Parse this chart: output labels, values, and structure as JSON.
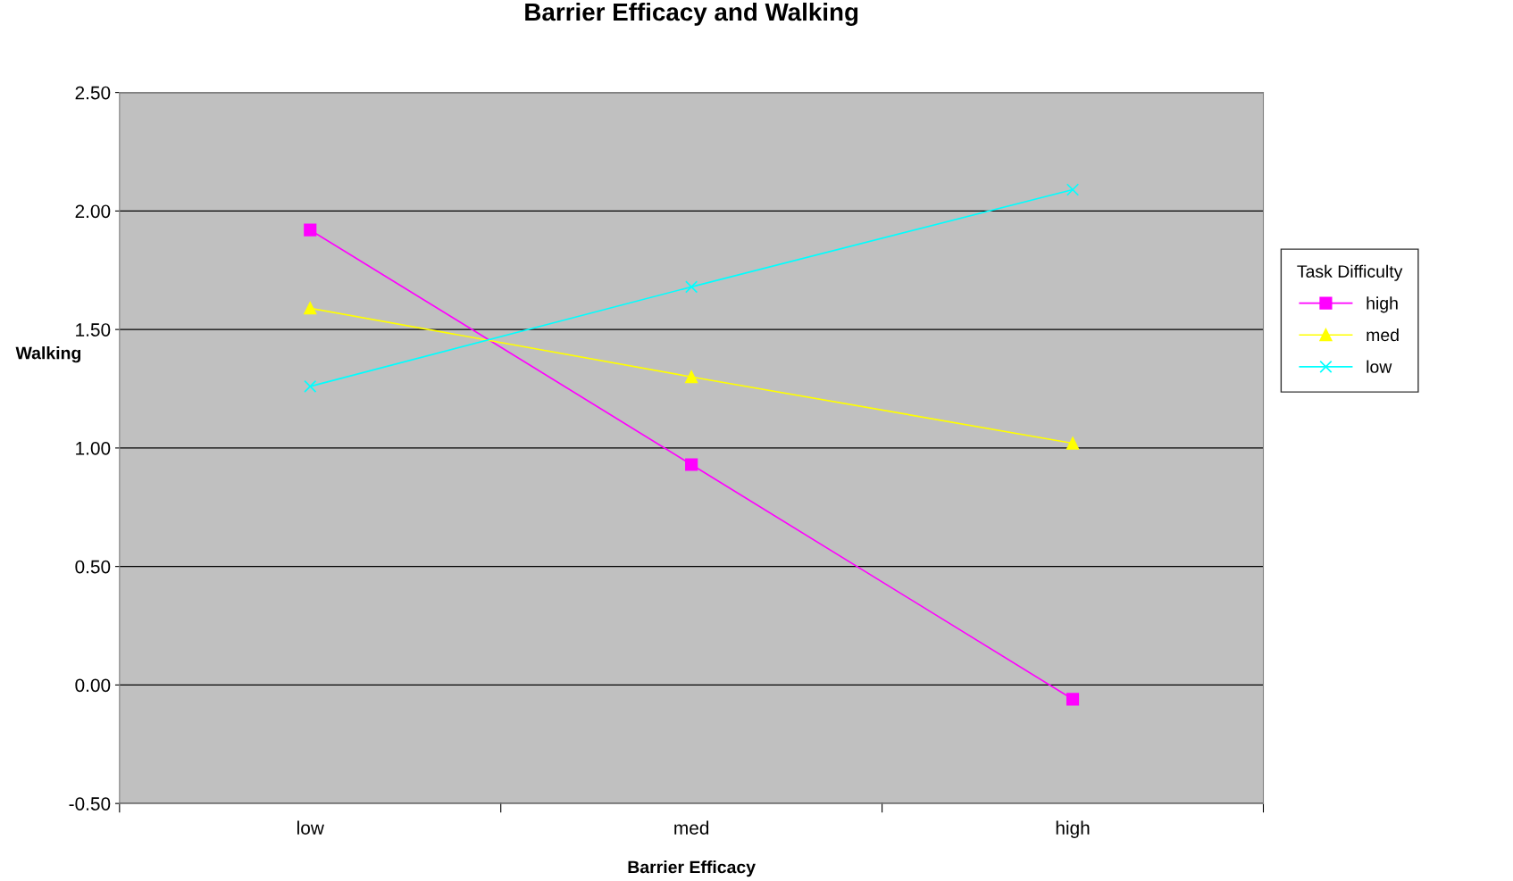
{
  "chart_data": {
    "type": "line",
    "title": "Barrier Efficacy and Walking",
    "xlabel": "Barrier Efficacy",
    "ylabel": "Walking",
    "legend_title": "Task Difficulty",
    "categories": [
      "low",
      "med",
      "high"
    ],
    "series": [
      {
        "name": "high",
        "color": "#ff00ff",
        "marker": "square",
        "values": [
          1.92,
          0.93,
          -0.06
        ]
      },
      {
        "name": "med",
        "color": "#ffff00",
        "marker": "triangle",
        "values": [
          1.59,
          1.3,
          1.02
        ]
      },
      {
        "name": "low",
        "color": "#00ffff",
        "marker": "cross",
        "values": [
          1.26,
          1.68,
          2.09
        ]
      }
    ],
    "ylim": [
      -0.5,
      2.5
    ],
    "yticks": [
      {
        "value": -0.5,
        "label": "-0.50"
      },
      {
        "value": 0,
        "label": "0.00"
      },
      {
        "value": 0.5,
        "label": "0.50"
      },
      {
        "value": 1,
        "label": "1.00"
      },
      {
        "value": 1.5,
        "label": "1.50"
      },
      {
        "value": 2,
        "label": "2.00"
      },
      {
        "value": 2.5,
        "label": "2.50"
      }
    ],
    "grid": "y",
    "legend": "right",
    "line_style": "solid"
  }
}
